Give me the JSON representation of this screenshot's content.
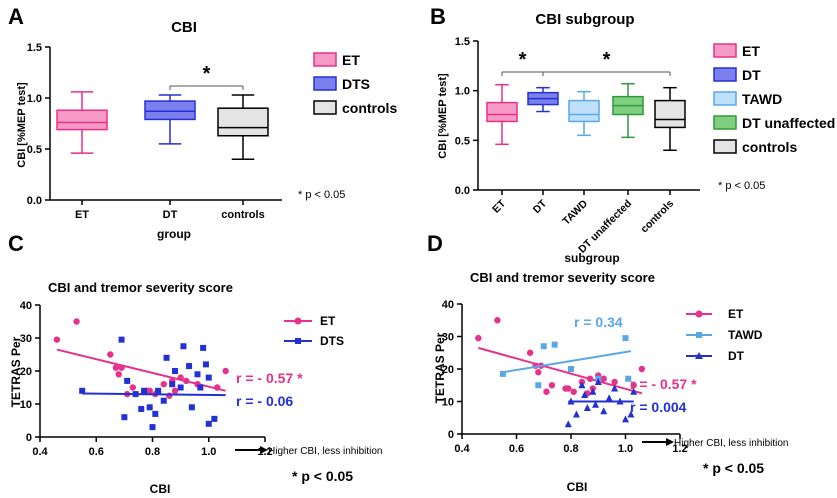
{
  "colors": {
    "et": "#e8318a",
    "dt": "#2330d4",
    "tawd": "#5aa7e6",
    "dtu": "#2e9b3a",
    "controls": "#000000"
  },
  "chart_data": [
    {
      "panel": "A",
      "type": "box",
      "title": "CBI",
      "xlabel": "group",
      "ylabel": "CBI [%MEP test]",
      "ylim": [
        0,
        1.5
      ],
      "yticks": [
        "0.0",
        "0.5",
        "1.0",
        "1.5"
      ],
      "categories": [
        "ET",
        "DT",
        "controls"
      ],
      "legend": [
        "ET",
        "DTS",
        "controls"
      ],
      "boxes": [
        {
          "key": "et",
          "min": 0.46,
          "q1": 0.69,
          "median": 0.76,
          "q3": 0.88,
          "max": 1.06
        },
        {
          "key": "dt",
          "min": 0.55,
          "q1": 0.79,
          "median": 0.87,
          "q3": 0.97,
          "max": 1.03
        },
        {
          "key": "controls",
          "min": 0.4,
          "q1": 0.63,
          "median": 0.71,
          "q3": 0.9,
          "max": 1.03
        }
      ],
      "significance": {
        "label": "*",
        "from": 1,
        "to": 2
      },
      "note": "* p < 0.05"
    },
    {
      "panel": "B",
      "type": "box",
      "title": "CBI subgroup",
      "xlabel": "subgroup",
      "ylabel": "CBI [%MEP test]",
      "ylim": [
        0,
        1.5
      ],
      "yticks": [
        "0.0",
        "0.5",
        "1.0",
        "1.5"
      ],
      "categories": [
        "ET",
        "DT",
        "TAWD",
        "DT unaffected",
        "controls"
      ],
      "legend": [
        "ET",
        "DT",
        "TAWD",
        "DT unaffected",
        "controls"
      ],
      "boxes": [
        {
          "key": "et",
          "min": 0.46,
          "q1": 0.69,
          "median": 0.76,
          "q3": 0.88,
          "max": 1.06
        },
        {
          "key": "dt",
          "min": 0.79,
          "q1": 0.86,
          "median": 0.92,
          "q3": 0.98,
          "max": 1.03
        },
        {
          "key": "tawd",
          "min": 0.55,
          "q1": 0.69,
          "median": 0.76,
          "q3": 0.9,
          "max": 0.99
        },
        {
          "key": "dtu",
          "min": 0.53,
          "q1": 0.76,
          "median": 0.85,
          "q3": 0.94,
          "max": 1.07
        },
        {
          "key": "controls",
          "min": 0.4,
          "q1": 0.63,
          "median": 0.71,
          "q3": 0.9,
          "max": 1.03
        }
      ],
      "significance": [
        {
          "label": "*",
          "from": 0,
          "to": 1
        },
        {
          "label": "*",
          "from": 1,
          "to": 4
        }
      ],
      "note": "* p < 0.05"
    },
    {
      "panel": "C",
      "type": "scatter",
      "title": "CBI and tremor severity score",
      "xlabel": "CBI",
      "ylabel": "TETRAS Per",
      "xlim": [
        0.4,
        1.2
      ],
      "ylim": [
        0,
        40
      ],
      "xticks": [
        "0.4",
        "0.6",
        "0.8",
        "1.0",
        "1.2"
      ],
      "yticks": [
        "0",
        "10",
        "20",
        "30",
        "40"
      ],
      "arrow_label": "Higher CBI, less inhibition",
      "note": "* p < 0.05",
      "series": [
        {
          "name": "ET",
          "key": "et",
          "marker": "circle",
          "r_label": "r = - 0.57 *",
          "points": [
            [
              0.46,
              29.5
            ],
            [
              0.53,
              35
            ],
            [
              0.65,
              25
            ],
            [
              0.67,
              21
            ],
            [
              0.68,
              19
            ],
            [
              0.69,
              21
            ],
            [
              0.71,
              13
            ],
            [
              0.73,
              15
            ],
            [
              0.78,
              14
            ],
            [
              0.79,
              14
            ],
            [
              0.81,
              13
            ],
            [
              0.84,
              16
            ],
            [
              0.86,
              12.5
            ],
            [
              0.87,
              17
            ],
            [
              0.88,
              14
            ],
            [
              0.9,
              18
            ],
            [
              0.92,
              17
            ],
            [
              0.96,
              16
            ],
            [
              1.03,
              15
            ],
            [
              1.06,
              20
            ]
          ],
          "fit": [
            [
              0.46,
              26.5
            ],
            [
              1.06,
              14
            ]
          ]
        },
        {
          "name": "DTS",
          "key": "dt",
          "marker": "square",
          "r_label": "r = - 0.06",
          "points": [
            [
              0.55,
              14
            ],
            [
              0.69,
              29.5
            ],
            [
              0.7,
              6
            ],
            [
              0.71,
              17
            ],
            [
              0.74,
              13
            ],
            [
              0.76,
              8.5
            ],
            [
              0.77,
              14
            ],
            [
              0.79,
              9
            ],
            [
              0.8,
              3
            ],
            [
              0.81,
              7
            ],
            [
              0.82,
              14
            ],
            [
              0.84,
              11
            ],
            [
              0.85,
              24
            ],
            [
              0.87,
              16
            ],
            [
              0.88,
              20
            ],
            [
              0.9,
              15
            ],
            [
              0.91,
              27.5
            ],
            [
              0.93,
              21.5
            ],
            [
              0.94,
              9
            ],
            [
              0.96,
              19
            ],
            [
              0.97,
              15
            ],
            [
              0.98,
              27
            ],
            [
              0.99,
              22
            ],
            [
              1.0,
              18
            ],
            [
              1.0,
              4
            ],
            [
              1.02,
              5.5
            ]
          ],
          "fit": [
            [
              0.55,
              13.2
            ],
            [
              1.06,
              12.7
            ]
          ]
        }
      ]
    },
    {
      "panel": "D",
      "type": "scatter",
      "title": "CBI and tremor severity score",
      "xlabel": "CBI",
      "ylabel": "TETRAS Per",
      "xlim": [
        0.4,
        1.2
      ],
      "ylim": [
        0,
        40
      ],
      "xticks": [
        "0.4",
        "0.6",
        "0.8",
        "1.0",
        "1.2"
      ],
      "yticks": [
        "0",
        "10",
        "20",
        "30",
        "40"
      ],
      "arrow_label": "Higher CBI, less inhibition",
      "note": "* p < 0.05",
      "series": [
        {
          "name": "ET",
          "key": "et",
          "marker": "circle",
          "r_label": "r = - 0.57 *",
          "points": [
            [
              0.46,
              29.5
            ],
            [
              0.53,
              35
            ],
            [
              0.65,
              25
            ],
            [
              0.67,
              21
            ],
            [
              0.68,
              19
            ],
            [
              0.69,
              21
            ],
            [
              0.71,
              13
            ],
            [
              0.73,
              15
            ],
            [
              0.78,
              14
            ],
            [
              0.79,
              14
            ],
            [
              0.81,
              13
            ],
            [
              0.84,
              16
            ],
            [
              0.86,
              12.5
            ],
            [
              0.87,
              17
            ],
            [
              0.88,
              14
            ],
            [
              0.9,
              18
            ],
            [
              0.92,
              17
            ],
            [
              0.96,
              16
            ],
            [
              1.03,
              15
            ],
            [
              1.06,
              20
            ]
          ],
          "fit": [
            [
              0.46,
              26.5
            ],
            [
              1.06,
              12.5
            ]
          ]
        },
        {
          "name": "TAWD",
          "key": "tawd",
          "marker": "square",
          "r_label": "r = 0.34",
          "points": [
            [
              0.55,
              18.5
            ],
            [
              0.68,
              15
            ],
            [
              0.7,
              27
            ],
            [
              0.74,
              27.5
            ],
            [
              0.8,
              20
            ],
            [
              0.9,
              17
            ],
            [
              1.0,
              29.5
            ],
            [
              1.01,
              17
            ]
          ],
          "fit": [
            [
              0.55,
              19
            ],
            [
              1.02,
              25.5
            ]
          ]
        },
        {
          "name": "DT",
          "key": "dt",
          "marker": "triangle",
          "r_label": "r =  0.004",
          "points": [
            [
              0.79,
              3
            ],
            [
              0.8,
              10
            ],
            [
              0.82,
              6
            ],
            [
              0.84,
              15
            ],
            [
              0.85,
              12
            ],
            [
              0.86,
              8
            ],
            [
              0.88,
              13
            ],
            [
              0.89,
              9
            ],
            [
              0.9,
              16
            ],
            [
              0.92,
              7
            ],
            [
              0.94,
              11
            ],
            [
              0.96,
              14
            ],
            [
              0.98,
              10
            ],
            [
              1.0,
              4.5
            ],
            [
              1.02,
              6
            ],
            [
              1.03,
              13
            ]
          ],
          "fit": [
            [
              0.79,
              10
            ],
            [
              1.03,
              10
            ]
          ]
        }
      ]
    }
  ],
  "panels": {
    "a": {
      "letter": "A",
      "title": "CBI",
      "ylabel": "CBI [%MEP test]",
      "xlabel": "group",
      "note": "* p < 0.05",
      "legend": [
        "ET",
        "DTS",
        "controls"
      ]
    },
    "b": {
      "letter": "B",
      "title": "CBI subgroup",
      "ylabel": "CBI [%MEP test]",
      "xlabel": "subgroup",
      "note": "* p < 0.05",
      "legend": [
        "ET",
        "DT",
        "TAWD",
        "DT unaffected",
        "controls"
      ]
    },
    "c": {
      "letter": "C",
      "title": "CBI and tremor severity score",
      "ylabel": "TETRAS Per",
      "xlabel": "CBI",
      "note": "* p < 0.05",
      "arrow": "Higher CBI, less inhibition",
      "legend": [
        "ET",
        "DTS"
      ]
    },
    "d": {
      "letter": "D",
      "title": "CBI and tremor severity score",
      "ylabel": "TETRAS Per",
      "xlabel": "CBI",
      "note": "* p < 0.05",
      "arrow": "Higher CBI, less inhibition",
      "legend": [
        "ET",
        "TAWD",
        "DT"
      ]
    }
  }
}
